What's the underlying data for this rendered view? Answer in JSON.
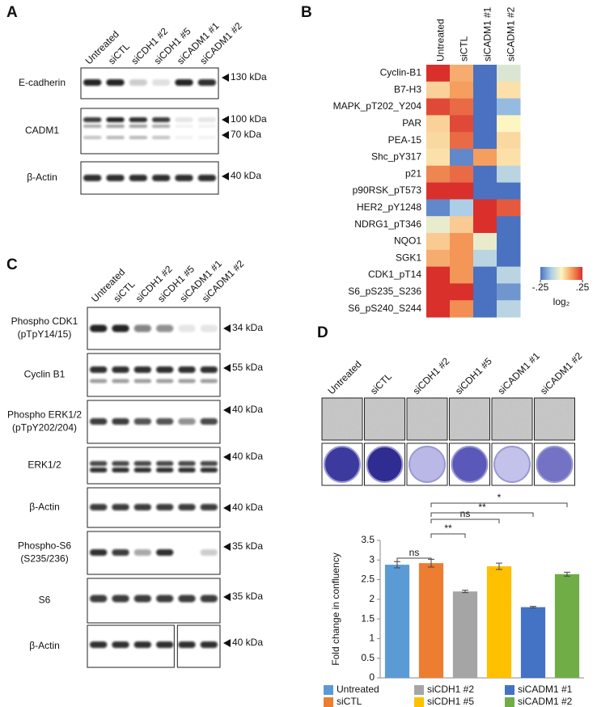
{
  "panel_a": {
    "letter": "A",
    "lanes": [
      "Untreated",
      "siCTL",
      "siCDH1 #2",
      "siCDH1 #5",
      "siCADM1 #1",
      "siCADM1 #2"
    ],
    "blots": [
      {
        "label": [
          "E-cadherin"
        ],
        "markers": [
          "130 kDa"
        ]
      },
      {
        "label": [
          "CADM1"
        ],
        "markers": [
          "100 kDa",
          "70 kDa"
        ]
      },
      {
        "label": [
          "β-Actin"
        ],
        "markers": [
          "40 kDa"
        ]
      }
    ]
  },
  "panel_b": {
    "letter": "B",
    "columns": [
      "Untreated",
      "siCTL",
      "siCADM1 #1",
      "siCADM1 #2"
    ],
    "rows": [
      "Cyclin-B1",
      "B7-H3",
      "MAPK_pT202_Y204",
      "PAR",
      "PEA-15",
      "Shc_pY317",
      "p21",
      "p90RSK_pT573",
      "HER2_pY1248",
      "NDRG1_pT346",
      "NQO1",
      "SGK1",
      "CDK1_pT14",
      "S6_pS235_S236",
      "S6_pS240_S244"
    ],
    "values": [
      [
        0.25,
        0.1,
        -0.25,
        -0.05
      ],
      [
        0.05,
        0.12,
        -0.25,
        0.03
      ],
      [
        0.22,
        0.18,
        -0.25,
        -0.15
      ],
      [
        0.05,
        0.22,
        -0.25,
        0.0
      ],
      [
        0.04,
        0.18,
        -0.25,
        0.04
      ],
      [
        0.03,
        -0.22,
        0.12,
        0.03
      ],
      [
        0.15,
        0.18,
        -0.25,
        -0.1
      ],
      [
        0.25,
        0.25,
        -0.25,
        -0.25
      ],
      [
        -0.22,
        -0.12,
        0.25,
        0.2
      ],
      [
        -0.03,
        0.06,
        0.25,
        -0.25
      ],
      [
        0.06,
        0.13,
        -0.03,
        -0.25
      ],
      [
        0.1,
        0.13,
        -0.1,
        -0.25
      ],
      [
        0.25,
        0.13,
        -0.25,
        -0.1
      ],
      [
        0.25,
        0.25,
        -0.25,
        -0.2
      ],
      [
        0.25,
        0.14,
        -0.25,
        -0.1
      ]
    ],
    "scale": {
      "lim": [
        -0.25,
        0.25
      ],
      "ticks": [
        {
          "value": -0.25,
          "label": "-.25"
        },
        {
          "value": 0.25,
          "label": ".25"
        }
      ],
      "unit": "log₂"
    }
  },
  "panel_c": {
    "letter": "C",
    "lanes": [
      "Untreated",
      "siCTL",
      "siCDH1 #2",
      "siCDH1 #5",
      "siCADM1 #1",
      "siCADM1 #2"
    ],
    "blots": [
      {
        "label": [
          "Phospho CDK1",
          "(pTpY14/15)"
        ],
        "markers": [
          "34 kDa"
        ]
      },
      {
        "label": [
          "Cyclin B1"
        ],
        "markers": [
          "55 kDa"
        ]
      },
      {
        "label": [
          "Phospho ERK1/2",
          "(pTpY202/204)"
        ],
        "markers": [
          "40 kDa"
        ]
      },
      {
        "label": [
          "ERK1/2"
        ],
        "markers": [
          "40 kDa"
        ]
      },
      {
        "label": [
          "β-Actin"
        ],
        "markers": [
          "40 kDa"
        ]
      },
      {
        "label": [
          "Phospho-S6",
          "(S235/236)"
        ],
        "markers": [
          "35 kDa"
        ]
      },
      {
        "label": [
          "S6"
        ],
        "markers": [
          "35 kDa"
        ]
      },
      {
        "label": [
          "β-Actin"
        ],
        "markers": [
          "40 kDa"
        ]
      }
    ]
  },
  "panel_d": {
    "letter": "D",
    "lanes": [
      "Untreated",
      "siCTL",
      "siCDH1 #2",
      "siCDH1 #5",
      "siCADM1 #1",
      "siCADM1 #2"
    ]
  },
  "chart_data": {
    "type": "bar",
    "ylabel": "Fold change in confluency",
    "categories": [
      "Untreated",
      "siCTL",
      "siCDH1 #2",
      "siCDH1 #5",
      "siCADM1 #1",
      "siCADM1 #2"
    ],
    "values": [
      2.88,
      2.92,
      2.2,
      2.84,
      1.8,
      2.64
    ],
    "errors": [
      0.08,
      0.1,
      0.03,
      0.08,
      0.02,
      0.05
    ],
    "colors": [
      "#5b9bd5",
      "#ed7d31",
      "#a5a5a5",
      "#ffc000",
      "#4472c4",
      "#70ad47"
    ],
    "ylim": [
      0,
      3.5
    ],
    "yticks": [
      0,
      0.5,
      1,
      1.5,
      2,
      2.5,
      3,
      3.5
    ],
    "annotations": [
      "ns",
      "**",
      "ns",
      "**",
      "*"
    ]
  }
}
